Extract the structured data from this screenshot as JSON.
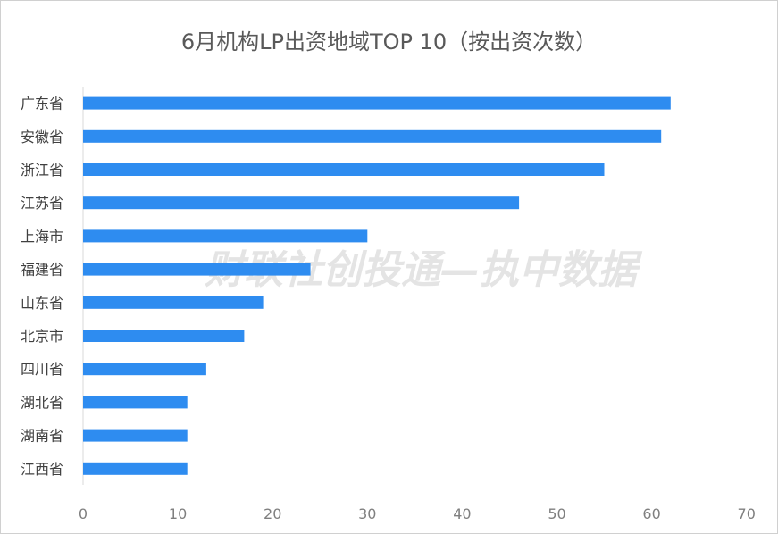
{
  "chart_data": {
    "type": "bar",
    "orientation": "horizontal",
    "title": "6月机构LP出资地域TOP 10（按出资次数）",
    "categories": [
      "广东省",
      "安徽省",
      "浙江省",
      "江苏省",
      "上海市",
      "福建省",
      "山东省",
      "北京市",
      "四川省",
      "湖北省",
      "湖南省",
      "江西省"
    ],
    "values": [
      62,
      61,
      55,
      46,
      30,
      24,
      19,
      17,
      13,
      11,
      11,
      11
    ],
    "xlim": [
      0,
      70
    ],
    "xticks": [
      0,
      10,
      20,
      30,
      40,
      50,
      60,
      70
    ],
    "grid": false,
    "bar_color": "#2e8cf0",
    "watermark": "财联社创投通—执中数据"
  }
}
